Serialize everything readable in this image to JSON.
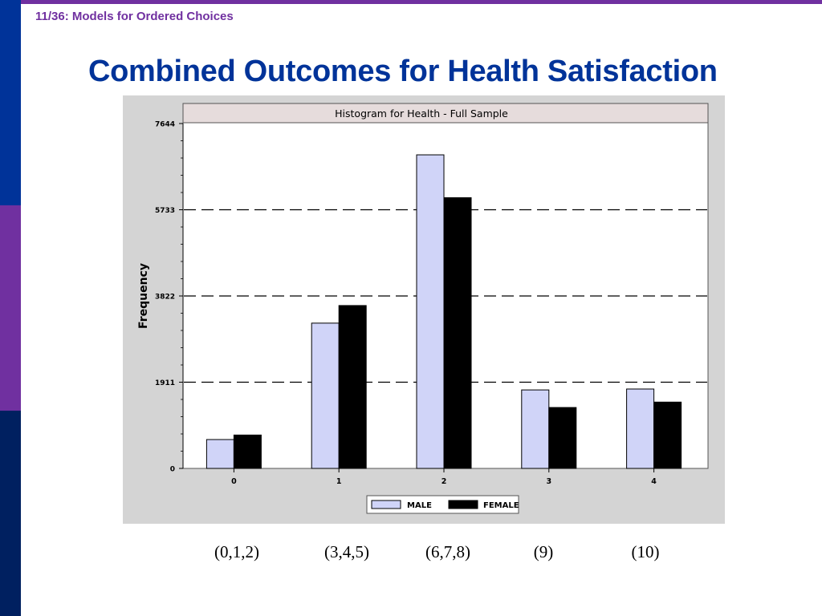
{
  "slide": {
    "header": "11/36:  Models for Ordered Choices",
    "title": "Combined Outcomes for Health Satisfaction",
    "categories": [
      "(0,1,2)",
      "(3,4,5)",
      "(6,7,8)",
      "(9)",
      "(10)"
    ]
  },
  "colors": {
    "accent_purple": "#7030a0",
    "title_blue": "#003399",
    "male_bar": "#d0d4f8",
    "female_bar": "#000000"
  },
  "chart_data": {
    "type": "bar",
    "title": "Histogram for Health - Full Sample",
    "xlabel": "",
    "ylabel": "Frequency",
    "categories": [
      "0",
      "1",
      "2",
      "3",
      "4"
    ],
    "series": [
      {
        "name": "MALE",
        "values": [
          640,
          3220,
          6950,
          1740,
          1760
        ]
      },
      {
        "name": "FEMALE",
        "values": [
          740,
          3610,
          6000,
          1350,
          1470
        ]
      }
    ],
    "yticks": [
      0,
      1911,
      3822,
      5733,
      7644
    ],
    "ylim": [
      0,
      7644
    ],
    "grid": "dashed at labeled ticks",
    "legend": "bottom-center"
  }
}
